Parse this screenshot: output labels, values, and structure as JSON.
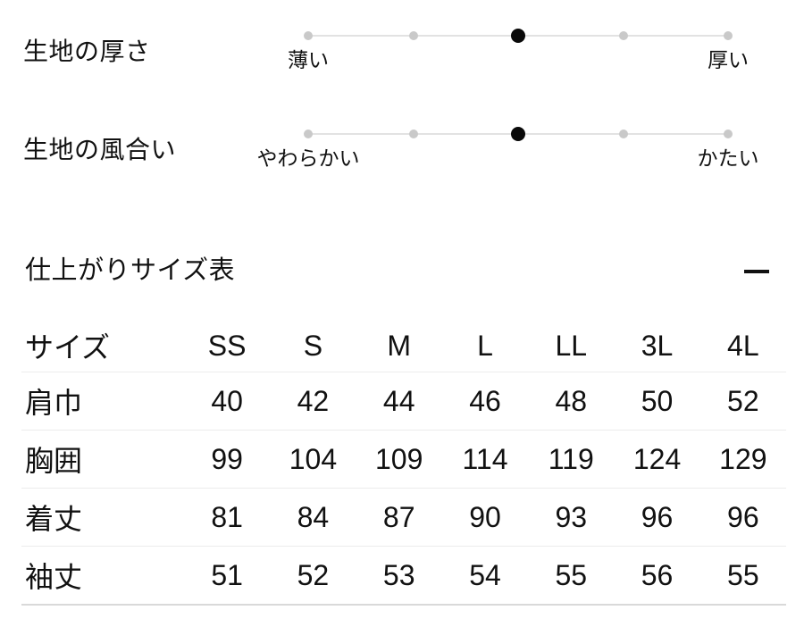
{
  "sliders": [
    {
      "label": "生地の厚さ",
      "left_label": "薄い",
      "right_label": "厚い",
      "steps": 5,
      "active_step": 3
    },
    {
      "label": "生地の風合い",
      "left_label": "やわらかい",
      "right_label": "かたい",
      "steps": 5,
      "active_step": 3
    }
  ],
  "size_section": {
    "title": "仕上がりサイズ表",
    "collapse_icon": "minus-icon",
    "table": {
      "columns": [
        "サイズ",
        "SS",
        "S",
        "M",
        "L",
        "LL",
        "3L",
        "4L"
      ],
      "rows": [
        {
          "label": "肩巾",
          "values": [
            "40",
            "42",
            "44",
            "46",
            "48",
            "50",
            "52"
          ]
        },
        {
          "label": "胸囲",
          "values": [
            "99",
            "104",
            "109",
            "114",
            "119",
            "124",
            "129"
          ]
        },
        {
          "label": "着丈",
          "values": [
            "81",
            "84",
            "87",
            "90",
            "93",
            "96",
            "96"
          ]
        },
        {
          "label": "袖丈",
          "values": [
            "51",
            "52",
            "53",
            "54",
            "55",
            "56",
            "55"
          ]
        }
      ]
    }
  },
  "colors": {
    "active_dot": "#0a0a0a",
    "inactive_dot": "#c9c9c9",
    "track_line": "#e2e2e2",
    "row_divider": "#ececec",
    "text": "#111111"
  }
}
